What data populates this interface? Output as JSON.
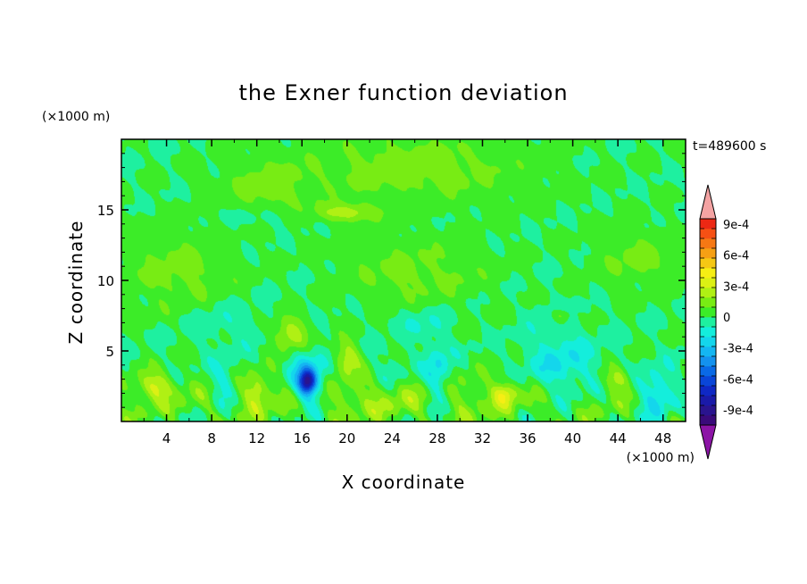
{
  "chart_data": {
    "type": "heatmap",
    "title": "the Exner function deviation",
    "xlabel": "X coordinate",
    "ylabel": "Z coordinate",
    "x_unit": "(×1000 m)",
    "y_unit": "(×1000 m)",
    "time_label": "t=489600 s",
    "xlim": [
      0,
      50
    ],
    "ylim": [
      0,
      20
    ],
    "x_ticks": [
      4,
      8,
      12,
      16,
      20,
      24,
      28,
      32,
      36,
      40,
      44,
      48
    ],
    "y_ticks": [
      5,
      10,
      15
    ],
    "grid": false,
    "colorbar": {
      "levels": [
        -0.001,
        -0.0009,
        -0.0008,
        -0.0007,
        -0.0006,
        -0.0005,
        -0.0004,
        -0.0003,
        -0.0002,
        -0.0001,
        0,
        0.0001,
        0.0002,
        0.0003,
        0.0004,
        0.0005,
        0.0006,
        0.0007,
        0.0008,
        0.0009,
        0.001
      ],
      "colors": [
        "#3a0a7a",
        "#2a148e",
        "#1a1aa8",
        "#0f28c4",
        "#0a46d8",
        "#0a6ae6",
        "#1492ee",
        "#14b6f2",
        "#14d6ec",
        "#14eedc",
        "#1ef0a0",
        "#3cec28",
        "#78ec14",
        "#b0f014",
        "#dcf014",
        "#f6ee14",
        "#f6c814",
        "#f6a014",
        "#f67814",
        "#f65014",
        "#ec2814"
      ],
      "under_color": "#8c14a6",
      "over_color": "#f4a3a3",
      "tick_labels": [
        {
          "value": 0.0009,
          "label": "9e-4"
        },
        {
          "value": 0.0006,
          "label": "6e-4"
        },
        {
          "value": 0.0003,
          "label": "3e-4"
        },
        {
          "value": 0,
          "label": "0"
        },
        {
          "value": -0.0003,
          "label": "-3e-4"
        },
        {
          "value": -0.0006,
          "label": "-6e-4"
        },
        {
          "value": -0.0009,
          "label": "-9e-4"
        }
      ]
    },
    "field_features": [
      {
        "kind": "background",
        "value": 5e-05
      },
      {
        "kind": "blob",
        "x": 26,
        "z": 18,
        "rx": 12,
        "rz": 3,
        "value": 0.00015
      },
      {
        "kind": "blob",
        "x": 13,
        "z": 16.5,
        "rx": 5,
        "rz": 2.5,
        "value": 0.00013
      },
      {
        "kind": "blob",
        "x": 5,
        "z": 10.5,
        "rx": 6,
        "rz": 3.5,
        "value": 0.00013
      },
      {
        "kind": "blob",
        "x": 26,
        "z": 10.5,
        "rx": 8,
        "rz": 3,
        "value": 0.00012
      },
      {
        "kind": "blob",
        "x": 46,
        "z": 11.5,
        "rx": 5,
        "rz": 2.5,
        "value": 0.00012
      },
      {
        "kind": "blob",
        "x": 20,
        "z": 14.8,
        "rx": 3.5,
        "rz": 0.8,
        "value": 0.00024
      },
      {
        "kind": "blob",
        "x": 12.5,
        "z": 14.5,
        "rx": 4,
        "rz": 0.9,
        "value": -8e-05
      },
      {
        "kind": "blob",
        "x": 23,
        "z": 1.5,
        "rx": 28,
        "rz": 2.2,
        "value": 0.00016
      },
      {
        "kind": "blob",
        "x": 9,
        "z": 7,
        "rx": 5,
        "rz": 2,
        "value": -8e-05
      },
      {
        "kind": "blob",
        "x": 15,
        "z": 6.2,
        "rx": 2,
        "rz": 1.5,
        "value": 0.00028
      },
      {
        "kind": "blob",
        "x": 16.5,
        "z": 2.8,
        "rx": 2,
        "rz": 2.5,
        "value": -0.0004
      },
      {
        "kind": "blob",
        "x": 16.5,
        "z": 2.8,
        "rx": 0.9,
        "rz": 1,
        "value": -0.0006
      },
      {
        "kind": "blob",
        "x": 9,
        "z": 2.5,
        "rx": 1.5,
        "rz": 2,
        "value": -0.0002
      },
      {
        "kind": "blob",
        "x": 28,
        "z": 3,
        "rx": 1.5,
        "rz": 3,
        "value": -0.00025
      },
      {
        "kind": "blob",
        "x": 39,
        "z": 3.8,
        "rx": 4,
        "rz": 3,
        "value": -0.0002
      },
      {
        "kind": "blob",
        "x": 47.5,
        "z": 2,
        "rx": 2,
        "rz": 2,
        "value": -0.00028
      },
      {
        "kind": "blob",
        "x": 26.5,
        "z": 7,
        "rx": 3,
        "rz": 1.5,
        "value": -0.0001
      },
      {
        "kind": "blob",
        "x": 38.5,
        "z": 7.5,
        "rx": 2.5,
        "rz": 1.2,
        "value": -8e-05
      },
      {
        "kind": "blob",
        "x": 3,
        "z": 2.5,
        "rx": 2,
        "rz": 1.2,
        "value": 0.00026
      },
      {
        "kind": "blob",
        "x": 20,
        "z": 4.5,
        "rx": 1.5,
        "rz": 1.5,
        "value": 0.00025
      },
      {
        "kind": "blob",
        "x": 34,
        "z": 2,
        "rx": 1.3,
        "rz": 1,
        "value": 0.00025
      },
      {
        "kind": "blob",
        "x": 44,
        "z": 3,
        "rx": 1.5,
        "rz": 1,
        "value": 0.00022
      },
      {
        "kind": "blob",
        "x": 39,
        "z": 7.5,
        "rx": 1.2,
        "rz": 0.7,
        "value": 0.00022
      },
      {
        "kind": "blob",
        "x": 12,
        "z": 2.2,
        "rx": 1.2,
        "rz": 1.4,
        "value": 0.0002
      },
      {
        "kind": "blob",
        "x": 24,
        "z": 3.5,
        "rx": 2,
        "rz": 1.5,
        "value": -9e-05
      }
    ]
  }
}
